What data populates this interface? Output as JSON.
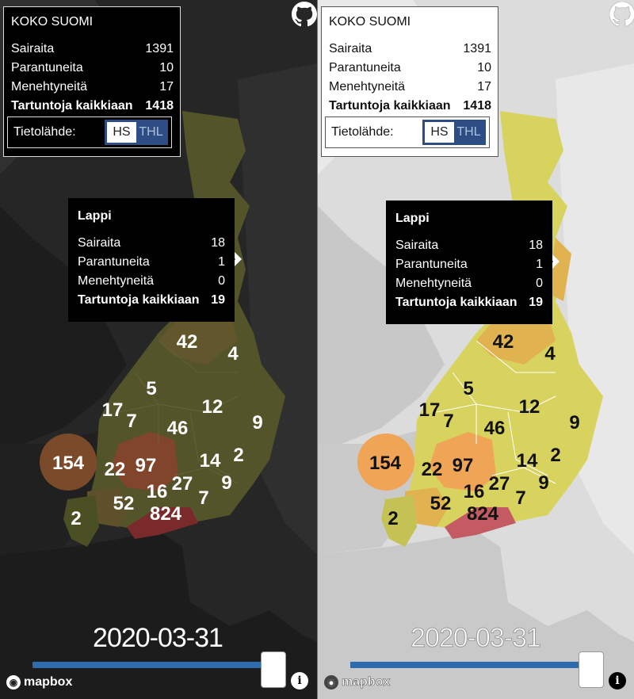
{
  "summary": {
    "title": "KOKO SUOMI",
    "rows": [
      {
        "label": "Sairaita",
        "value": "1391"
      },
      {
        "label": "Parantuneita",
        "value": "10"
      },
      {
        "label": "Menehtyneitä",
        "value": "17"
      }
    ],
    "total": {
      "label": "Tartuntoja kaikkiaan",
      "value": "1418"
    },
    "source_label": "Tietolähde:",
    "source_options": [
      "HS",
      "THL"
    ],
    "source_selected": "HS"
  },
  "tooltip": {
    "title": "Lappi",
    "rows": [
      {
        "label": "Sairaita",
        "value": "18"
      },
      {
        "label": "Parantuneita",
        "value": "1"
      },
      {
        "label": "Menehtyneitä",
        "value": "0"
      }
    ],
    "total": {
      "label": "Tartuntoja kaikkiaan",
      "value": "19"
    }
  },
  "regions": [
    {
      "id": "lappi",
      "label": ""
    },
    {
      "id": "lansi-pohja",
      "label": ""
    },
    {
      "id": "pohjois-pohjanmaa",
      "label": "42"
    },
    {
      "id": "kainuu",
      "label": "4"
    },
    {
      "id": "keski-pohjanmaa",
      "label": "5"
    },
    {
      "id": "vaasa",
      "label": "17"
    },
    {
      "id": "etela-pohjanmaa",
      "label": "7"
    },
    {
      "id": "pohjois-savo",
      "label": "12"
    },
    {
      "id": "keski-suomi",
      "label": "46"
    },
    {
      "id": "pohjois-karjala",
      "label": "9"
    },
    {
      "id": "satakunta",
      "label": "22"
    },
    {
      "id": "pirkanmaa",
      "label": "97"
    },
    {
      "id": "ita-savo",
      "label": "2"
    },
    {
      "id": "etela-savo",
      "label": "14"
    },
    {
      "id": "kanta-hame",
      "label": "16"
    },
    {
      "id": "paijat-hame",
      "label": "27"
    },
    {
      "id": "etela-karjala",
      "label": "9"
    },
    {
      "id": "varsinais-suomi",
      "label": "52"
    },
    {
      "id": "kymenlaakso",
      "label": "7"
    },
    {
      "id": "hus",
      "label": "824"
    },
    {
      "id": "ahvenanmaa",
      "label": "2"
    },
    {
      "id": "unknown",
      "label": "154"
    }
  ],
  "date": "2020-03-31",
  "attribution": "mapbox",
  "icons": {
    "github": "github-icon",
    "info": "info-icon",
    "mapbox": "mapbox-logo-icon"
  },
  "themes": {
    "dark": {
      "background": "#2b2b2b",
      "land": "#3a3a3a",
      "water": "#1f1f1f",
      "low": "#56562a",
      "mid": "#6a5a2c",
      "high": "#80452a",
      "top": "#7a2a2a"
    },
    "light": {
      "background": "#dcdcdc",
      "land": "#e7e7e7",
      "water": "#c8c8c8",
      "low": "#d8d35e",
      "mid": "#e0b350",
      "high": "#f0a455",
      "top": "#c45a62"
    }
  }
}
